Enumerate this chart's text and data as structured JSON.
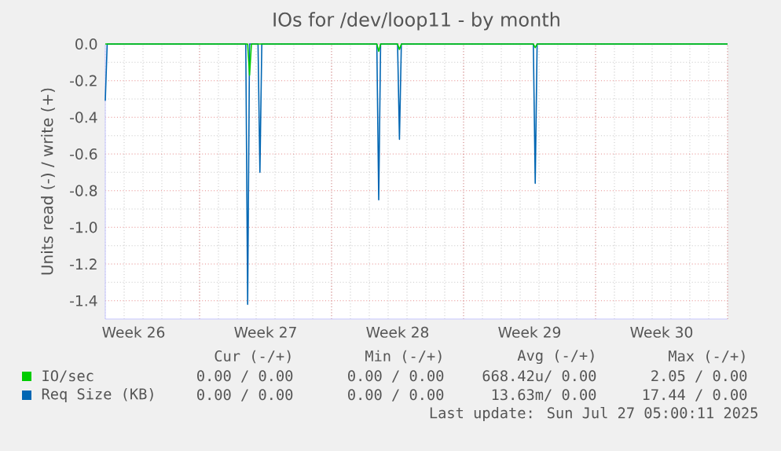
{
  "chart_data": {
    "type": "line",
    "title": "IOs for /dev/loop11 - by month",
    "ylabel": "Units read (-) / write (+)",
    "x": [
      "2025-06-25T00:00",
      "2025-06-25T02:24",
      "2025-07-02T10:48",
      "2025-07-02T13:12",
      "2025-07-02T15:36",
      "2025-07-03T02:24",
      "2025-07-03T04:48",
      "2025-07-03T07:12",
      "2025-07-09T09:36",
      "2025-07-09T12:00",
      "2025-07-09T14:24",
      "2025-07-10T12:00",
      "2025-07-10T14:24",
      "2025-07-10T16:48",
      "2025-07-17T16:48",
      "2025-07-17T19:12",
      "2025-07-17T21:36",
      "2025-07-28T00:00"
    ],
    "series": [
      {
        "name": "Req Size (KB)",
        "color": "#0066b3",
        "values": [
          -0.31,
          0,
          0,
          -1.42,
          0,
          0,
          -0.7,
          0,
          0,
          -0.85,
          0,
          0,
          -0.52,
          0,
          0,
          -0.76,
          0,
          0
        ]
      },
      {
        "name": "IO/sec",
        "color": "#00cc00",
        "x": [
          "2025-06-25T00:00",
          "2025-07-02T13:12",
          "2025-07-02T15:36",
          "2025-07-02T18:00",
          "2025-07-09T09:36",
          "2025-07-09T12:00",
          "2025-07-09T14:24",
          "2025-07-10T12:00",
          "2025-07-10T14:24",
          "2025-07-10T16:48",
          "2025-07-17T16:48",
          "2025-07-17T19:12",
          "2025-07-17T21:36",
          "2025-07-28T00:00"
        ],
        "values": [
          0,
          0,
          -0.17,
          0,
          0,
          -0.04,
          0,
          0,
          -0.03,
          0,
          0,
          -0.02,
          0,
          0
        ]
      }
    ],
    "xlim": [
      "2025-06-25T00:00",
      "2025-07-28T00:00"
    ],
    "xticks": [
      {
        "value": "2025-06-26T12:00",
        "label": "Week 26"
      },
      {
        "value": "2025-07-03T12:00",
        "label": "Week 27"
      },
      {
        "value": "2025-07-10T12:00",
        "label": "Week 28"
      },
      {
        "value": "2025-07-17T12:00",
        "label": "Week 29"
      },
      {
        "value": "2025-07-24T12:00",
        "label": "Week 30"
      },
      {
        "value": "2025-06-30",
        "label": null
      },
      {
        "value": "2025-07-07",
        "label": null
      },
      {
        "value": "2025-07-14",
        "label": null
      },
      {
        "value": "2025-07-21",
        "label": null
      },
      {
        "value": "2025-07-28",
        "label": null
      }
    ],
    "ylim": [
      -1.5,
      0
    ],
    "yticks": [
      {
        "value": 0,
        "label": "0.0"
      },
      {
        "value": -0.2,
        "label": "-0.2"
      },
      {
        "value": -0.4,
        "label": "-0.4"
      },
      {
        "value": -0.6,
        "label": "-0.6"
      },
      {
        "value": -0.8,
        "label": "-0.8"
      },
      {
        "value": -1.0,
        "label": "-1.0"
      },
      {
        "value": -1.2,
        "label": "-1.2"
      },
      {
        "value": -1.4,
        "label": "-1.4"
      }
    ],
    "grid": true,
    "legend": "bottom left",
    "marker": "none",
    "line_style": "solid",
    "annotations": [
      "Cur (-/+)",
      "Min (-/+)",
      "Avg (-/+)",
      "Max (-/+)",
      "0.00 / 0.00",
      "0.00 / 0.00",
      "668.42u/ 0.00",
      "2.05 / 0.00",
      "0.00 / 0.00",
      "0.00 / 0.00",
      "13.63m/ 0.00",
      "17.44 / 0.00",
      "Last update: Sun Jul 27 05:00:11 2025"
    ]
  }
}
